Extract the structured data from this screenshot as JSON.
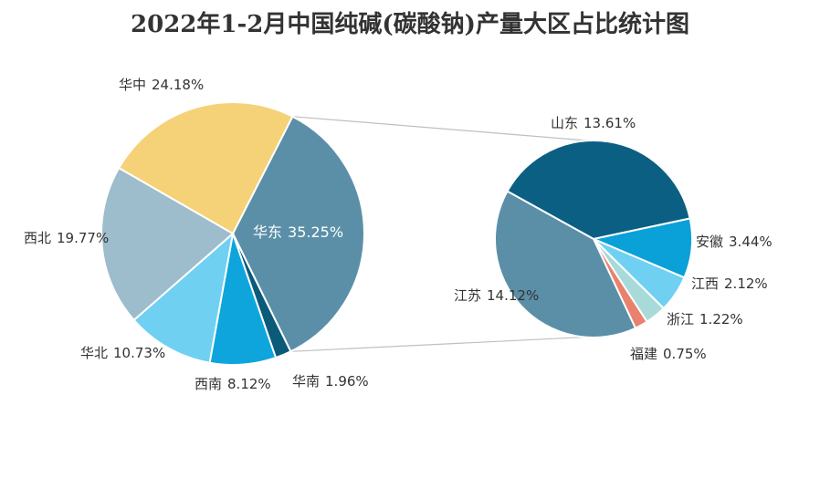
{
  "chart_data": {
    "type": "pie",
    "title": "2022年1-2月中国纯碱(碳酸钠)产量大区占比统计图",
    "main_pie": {
      "slices": [
        {
          "label": "华东",
          "value": 35.25,
          "display": "35.25%",
          "color": "#5b8fa8"
        },
        {
          "label": "华南",
          "value": 1.96,
          "display": "1.96%",
          "color": "#0a5a7a"
        },
        {
          "label": "西南",
          "value": 8.12,
          "display": "8.12%",
          "color": "#0ea5dd"
        },
        {
          "label": "华北",
          "value": 10.73,
          "display": "10.73%",
          "color": "#6fd0f2"
        },
        {
          "label": "西北",
          "value": 19.77,
          "display": "19.77%",
          "color": "#9dbccc"
        },
        {
          "label": "华中",
          "value": 24.18,
          "display": "24.18%",
          "color": "#f5d277"
        }
      ]
    },
    "detail_pie": {
      "breakdown_of": "华东",
      "slices": [
        {
          "label": "山东",
          "value": 13.61,
          "display": "13.61%",
          "color": "#0b5f82"
        },
        {
          "label": "安徽",
          "value": 3.44,
          "display": "3.44%",
          "color": "#0aa0d8"
        },
        {
          "label": "江西",
          "value": 2.12,
          "display": "2.12%",
          "color": "#6fd0f2"
        },
        {
          "label": "浙江",
          "value": 1.22,
          "display": "1.22%",
          "color": "#a8dada"
        },
        {
          "label": "福建",
          "value": 0.75,
          "display": "0.75%",
          "color": "#e8826e"
        },
        {
          "label": "江苏",
          "value": 14.12,
          "display": "14.12%",
          "color": "#5b8fa8"
        }
      ]
    }
  }
}
